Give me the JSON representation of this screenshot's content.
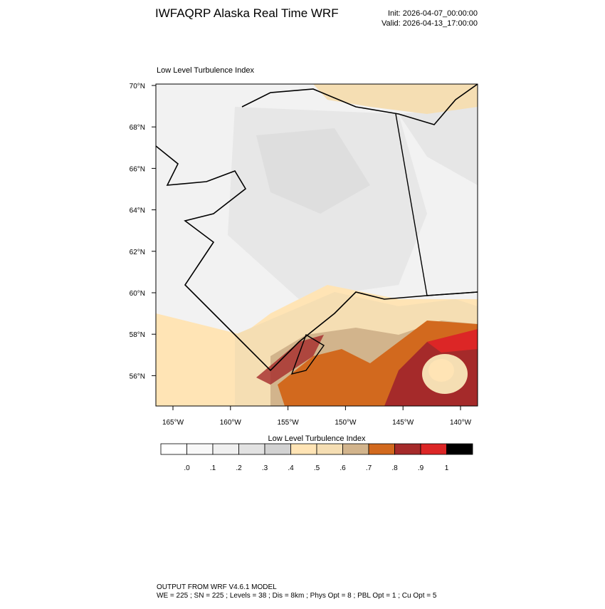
{
  "header": {
    "title": "IWFAQRP Alaska Real Time WRF",
    "init": "Init: 2026-04-07_00:00:00",
    "valid": "Valid: 2026-04-13_17:00:00"
  },
  "map": {
    "title": "Low Level Turbulence Index",
    "lat_labels": [
      "70°N",
      "68°N",
      "66°N",
      "64°N",
      "62°N",
      "60°N",
      "58°N",
      "56°N"
    ],
    "lon_labels": [
      "165°W",
      "160°W",
      "155°W",
      "150°W",
      "145°W",
      "140°W"
    ]
  },
  "colorbar": {
    "title": "Low Level Turbulence Index",
    "colors": [
      "#ffffff",
      "#f8f8f8",
      "#f0f0f0",
      "#e2e2e2",
      "#d2d2d2",
      "#ffe4b5",
      "#f5deb3",
      "#d2b48c",
      "#d2691e",
      "#a52a2a",
      "#dc2626",
      "#000000"
    ],
    "labels": [
      ".0",
      ".1",
      ".2",
      ".3",
      ".4",
      ".5",
      ".6",
      ".7",
      ".8",
      ".9",
      "1"
    ]
  },
  "footer": {
    "line1": "OUTPUT FROM WRF V4.6.1 MODEL",
    "line2": "WE = 225 ; SN = 225 ; Levels = 38 ; Dis = 8km ; Phys Opt = 8 ; PBL Opt = 1 ; Cu Opt = 5"
  }
}
